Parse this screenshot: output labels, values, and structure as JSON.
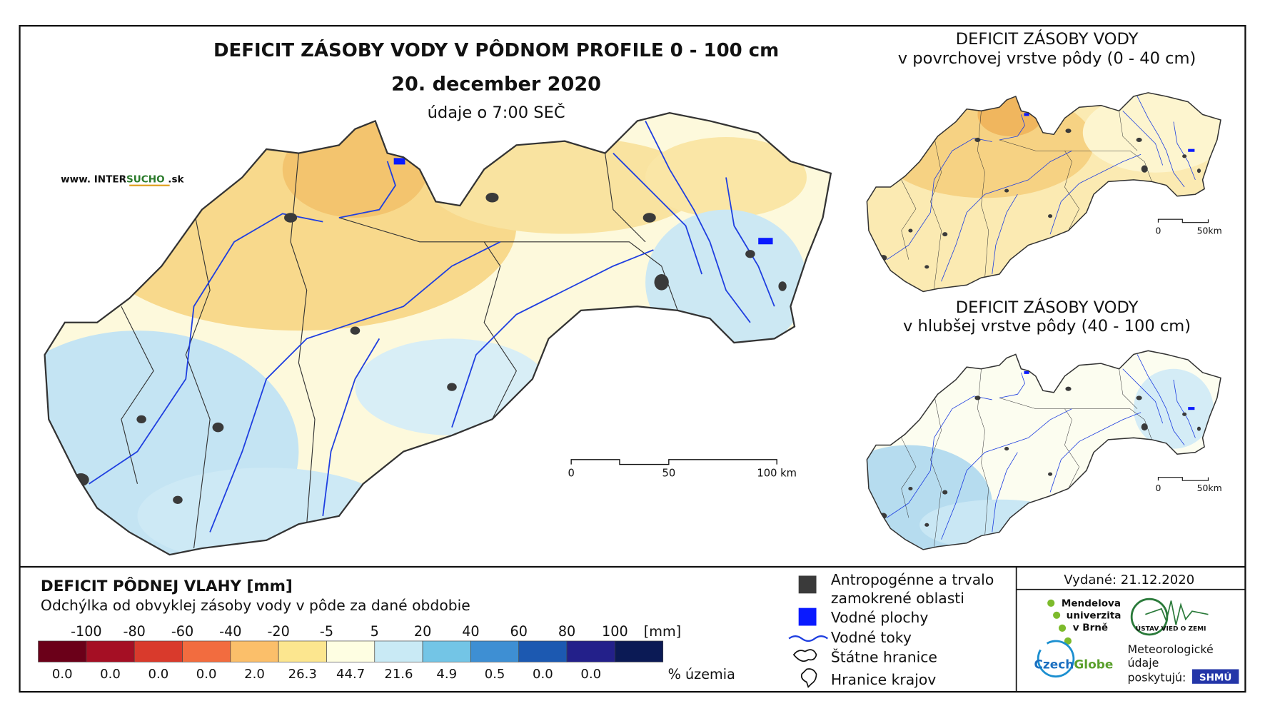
{
  "header": {
    "title": "DEFICIT ZÁSOBY VODY V PÔDNOM PROFILE 0 - 100 cm",
    "date": "20. december 2020",
    "time_note": "údaje o 7:00 SEČ",
    "website": {
      "prefix": "www. INTER",
      "highlight": "SUCHO",
      "suffix": " .sk"
    }
  },
  "main_scale_labels": [
    "0",
    "50",
    "100 km"
  ],
  "inset_maps": [
    {
      "title": "DEFICIT ZÁSOBY VODY",
      "subtitle": "v povrchovej vrstve pôdy (0 - 40 cm)",
      "scale_labels": [
        "0",
        "50km"
      ]
    },
    {
      "title": "DEFICIT ZÁSOBY VODY",
      "subtitle": "v hlubšej vrstve pôdy (40 - 100 cm)",
      "scale_labels": [
        "0",
        "50km"
      ]
    }
  ],
  "legend": {
    "title": "DEFICIT PÔDNEJ VLAHY [mm]",
    "subtitle": "Odchýlka od obvyklej zásoby vody v pôde za dané obdobie",
    "breaks": [
      "-100",
      "-80",
      "-60",
      "-40",
      "-20",
      "-5",
      "5",
      "20",
      "40",
      "60",
      "80",
      "100"
    ],
    "unit": "[mm]",
    "colors": [
      "#6b0019",
      "#a50f24",
      "#d93a2c",
      "#f26c3f",
      "#fbbf6a",
      "#fce68f",
      "#fefee2",
      "#c9eaf5",
      "#73c5e6",
      "#3e8fd3",
      "#1c59b1",
      "#23208a",
      "#0b1a55"
    ],
    "percentages": [
      "0.0",
      "0.0",
      "0.0",
      "0.0",
      "2.0",
      "26.3",
      "44.7",
      "21.6",
      "4.9",
      "0.5",
      "0.0",
      "0.0"
    ],
    "percent_label": "% územia"
  },
  "symbols": [
    {
      "lines": [
        "Antropogénne a trvalo",
        "zamokrené oblasti"
      ]
    },
    {
      "lines": [
        "Vodné plochy"
      ]
    },
    {
      "lines": [
        "Vodné toky"
      ]
    },
    {
      "lines": [
        "Štátne hranice"
      ]
    },
    {
      "lines": [
        "Hranice krajov"
      ]
    }
  ],
  "issued": "Vydané: 21.12.2020",
  "logos": {
    "mendel": [
      "Mendelova",
      "univerzita",
      "v Brně"
    ],
    "ustav": "ÚSTAV VIED O ZEMI",
    "czechglobe": {
      "a": "Czech",
      "b": "Globe"
    },
    "provider": [
      "Meteorologické",
      "údaje",
      "poskytujú:"
    ],
    "shmu": "SHMÚ"
  }
}
